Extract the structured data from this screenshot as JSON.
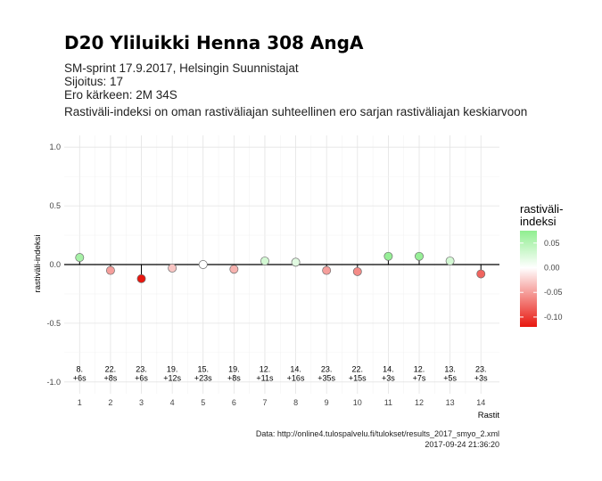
{
  "chart_data": {
    "type": "scatter",
    "title": "D20 Yliluikki Henna 308 AngA",
    "subtitle": [
      "SM-sprint 17.9.2017, Helsingin Suunnistajat",
      "Sijoitus: 17",
      "Ero kärkeen: 2M 34S",
      "Rastiväli-indeksi on oman rastiväliajan suhteellinen ero sarjan rastiväliajan keskiarvoon"
    ],
    "xlabel": "Rastit",
    "ylabel": "rastiväli-indeksi",
    "xlim": [
      0.5,
      14.6
    ],
    "ylim": [
      -1.1,
      1.1
    ],
    "y_ticks": [
      "1.0",
      "0.5",
      "0.0",
      "-0.5",
      "-1.0"
    ],
    "x": [
      1,
      2,
      3,
      4,
      5,
      6,
      7,
      8,
      9,
      10,
      11,
      12,
      13,
      14
    ],
    "values": [
      0.06,
      -0.05,
      -0.12,
      -0.03,
      0.0,
      -0.04,
      0.03,
      0.02,
      -0.05,
      -0.06,
      0.07,
      0.07,
      0.03,
      -0.08
    ],
    "labels": [
      [
        "8.",
        "+6s"
      ],
      [
        "22.",
        "+8s"
      ],
      [
        "23.",
        "+6s"
      ],
      [
        "19.",
        "+12s"
      ],
      [
        "15.",
        "+23s"
      ],
      [
        "19.",
        "+8s"
      ],
      [
        "12.",
        "+11s"
      ],
      [
        "14.",
        "+16s"
      ],
      [
        "23.",
        "+35s"
      ],
      [
        "22.",
        "+15s"
      ],
      [
        "14.",
        "+3s"
      ],
      [
        "12.",
        "+7s"
      ],
      [
        "13.",
        "+5s"
      ],
      [
        "23.",
        "+3s"
      ]
    ],
    "label_y": -0.92,
    "grid": true,
    "legend": {
      "title": [
        "rastiväli-",
        "indeksi"
      ],
      "placement": "right",
      "ticks": [
        "0.05",
        "0.00",
        "-0.05",
        "-0.10"
      ],
      "tick_values": [
        0.05,
        0.0,
        -0.05,
        -0.1
      ],
      "range": [
        -0.12,
        0.075
      ],
      "colors": {
        "high": "#90ee90",
        "mid": "#ffffff",
        "low": "#e8170f"
      }
    },
    "caption": [
      "Data: http://online4.tulospalvelu.fi/tulokset/results_2017_smyo_2.xml",
      "2017-09-24 21:36:20"
    ]
  }
}
